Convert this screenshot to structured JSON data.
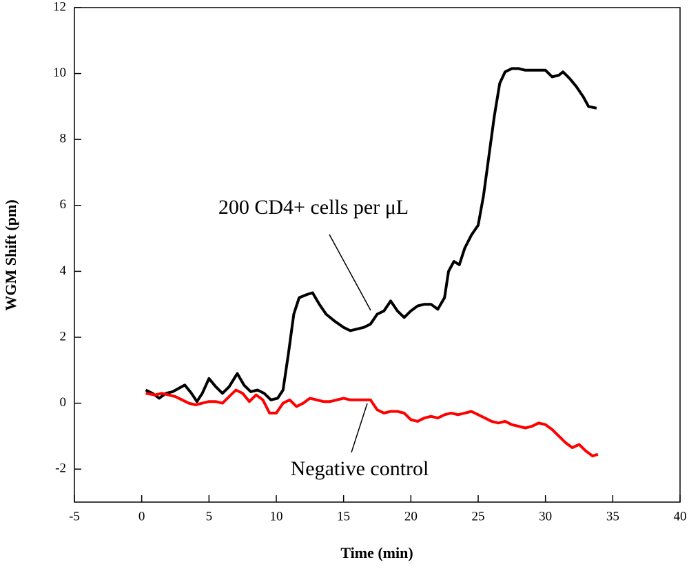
{
  "chart_data": {
    "type": "line",
    "xlabel": "Time (min)",
    "ylabel": "WGM Shift (pm)",
    "xlim": [
      -5,
      40
    ],
    "xticks": [
      -5,
      0,
      5,
      10,
      15,
      20,
      25,
      30,
      35,
      40
    ],
    "ylim": [
      -3,
      12
    ],
    "yticks": [
      -2,
      0,
      2,
      4,
      6,
      8,
      10,
      12
    ],
    "grid": false,
    "annotations": [
      "200 CD4+ cells per μL",
      "Negative control"
    ],
    "series": [
      {
        "color": "#000000",
        "x": [
          0.3,
          0.8,
          1.3,
          1.8,
          2.3,
          3.2,
          3.7,
          4.1,
          4.5,
          5.0,
          5.5,
          6.0,
          6.5,
          7.1,
          7.6,
          8.1,
          8.6,
          9.1,
          9.6,
          10.1,
          10.5,
          10.9,
          11.3,
          11.7,
          12.3,
          12.7,
          13.2,
          13.7,
          14.3,
          15.0,
          15.5,
          16.0,
          16.5,
          17.0,
          17.5,
          18.0,
          18.5,
          19.0,
          19.5,
          20.0,
          20.5,
          21.0,
          21.5,
          22.0,
          22.5,
          22.8,
          23.2,
          23.6,
          24.0,
          24.5,
          25.0,
          25.4,
          25.8,
          26.2,
          26.6,
          27.0,
          27.5,
          28.0,
          28.5,
          29.0,
          29.5,
          30.0,
          30.5,
          31.0,
          31.3,
          31.8,
          32.3,
          32.8,
          33.2,
          33.8
        ],
        "values": [
          0.4,
          0.3,
          0.15,
          0.3,
          0.35,
          0.55,
          0.3,
          0.05,
          0.3,
          0.75,
          0.5,
          0.3,
          0.5,
          0.9,
          0.55,
          0.35,
          0.4,
          0.3,
          0.1,
          0.15,
          0.4,
          1.5,
          2.7,
          3.2,
          3.3,
          3.35,
          3.0,
          2.7,
          2.5,
          2.3,
          2.2,
          2.25,
          2.3,
          2.4,
          2.7,
          2.8,
          3.1,
          2.8,
          2.6,
          2.8,
          2.95,
          3.0,
          3.0,
          2.85,
          3.2,
          4.0,
          4.3,
          4.2,
          4.7,
          5.1,
          5.4,
          6.3,
          7.5,
          8.7,
          9.7,
          10.05,
          10.15,
          10.15,
          10.1,
          10.1,
          10.1,
          10.1,
          9.9,
          9.95,
          10.05,
          9.85,
          9.6,
          9.3,
          9.0,
          8.95
        ]
      },
      {
        "color": "#ff0000",
        "x": [
          0.3,
          1.0,
          1.5,
          2.0,
          2.5,
          3.0,
          3.5,
          4.0,
          4.5,
          5.0,
          5.5,
          6.0,
          6.5,
          7.0,
          7.5,
          8.0,
          8.5,
          9.0,
          9.5,
          10.0,
          10.5,
          11.0,
          11.5,
          12.0,
          12.5,
          13.0,
          13.5,
          14.0,
          14.5,
          15.0,
          15.5,
          16.0,
          16.5,
          17.0,
          17.5,
          18.0,
          18.5,
          19.0,
          19.5,
          20.0,
          20.5,
          21.0,
          21.5,
          22.0,
          22.5,
          23.0,
          23.5,
          24.0,
          24.5,
          25.0,
          25.5,
          26.0,
          26.5,
          27.0,
          27.5,
          28.0,
          28.5,
          29.0,
          29.5,
          30.0,
          30.5,
          31.0,
          31.5,
          32.0,
          32.5,
          33.0,
          33.5,
          33.9
        ],
        "values": [
          0.3,
          0.25,
          0.3,
          0.25,
          0.2,
          0.1,
          0.0,
          -0.05,
          0.0,
          0.05,
          0.05,
          0.0,
          0.2,
          0.4,
          0.3,
          0.05,
          0.25,
          0.1,
          -0.3,
          -0.3,
          0.0,
          0.1,
          -0.1,
          0.0,
          0.15,
          0.1,
          0.05,
          0.05,
          0.1,
          0.15,
          0.1,
          0.1,
          0.1,
          0.1,
          -0.2,
          -0.3,
          -0.25,
          -0.25,
          -0.3,
          -0.5,
          -0.55,
          -0.45,
          -0.4,
          -0.45,
          -0.35,
          -0.3,
          -0.35,
          -0.3,
          -0.25,
          -0.35,
          -0.45,
          -0.55,
          -0.6,
          -0.55,
          -0.65,
          -0.7,
          -0.75,
          -0.7,
          -0.6,
          -0.65,
          -0.8,
          -1.0,
          -1.2,
          -1.35,
          -1.25,
          -1.45,
          -1.6,
          -1.55
        ]
      }
    ]
  }
}
